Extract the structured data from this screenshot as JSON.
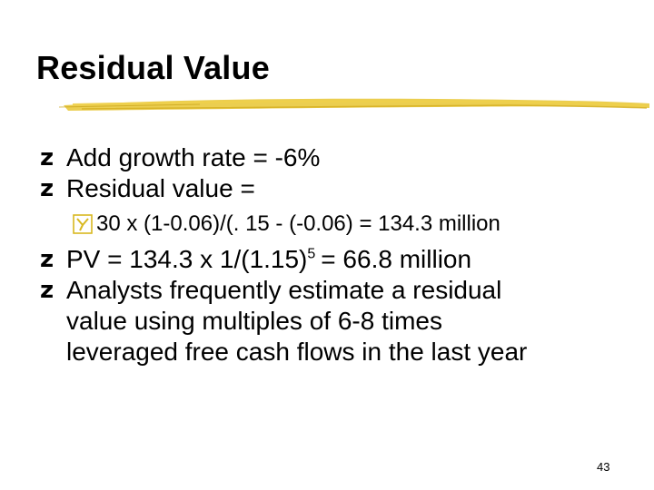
{
  "slide": {
    "title": "Residual Value",
    "bullet_marker": "z",
    "bullets": [
      {
        "text": "Add growth rate = -6%"
      },
      {
        "text": "Residual value ="
      }
    ],
    "sub_bullet": {
      "text": "30 x (1-0.06)/(. 15 - (-0.06) = 134.3 million"
    },
    "pv": {
      "before": "PV = 134.3 x  1/(1.15)",
      "exponent": "5",
      "after": "= 66.8 million"
    },
    "analyst_bullet": {
      "lines": [
        "Analysts frequently estimate a residual",
        "value using multiples of 6-8 times",
        "leveraged free cash flows in the last year"
      ]
    },
    "page_number": "43"
  },
  "colors": {
    "accent": "#E8C531",
    "sub_bullet_icon": "#D8B820",
    "text": "#000000"
  }
}
